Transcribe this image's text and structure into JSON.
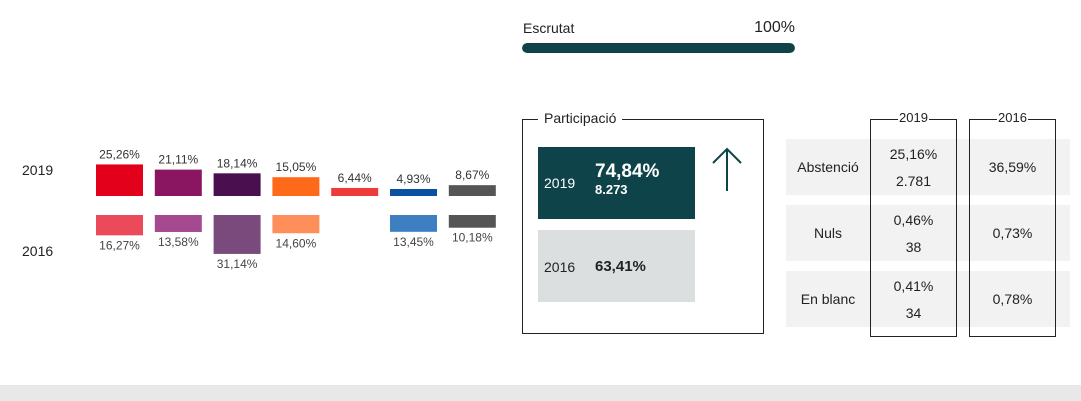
{
  "escrutat": {
    "label": "Escrutat",
    "value_text": "100%",
    "progress": 1.0
  },
  "chart_data": {
    "type": "bar",
    "rows": [
      "2019",
      "2016"
    ],
    "series": [
      {
        "color_2019": "#e2001a",
        "color_2016": "#ea4a5a",
        "v2019": 25.26,
        "v2016": 16.27,
        "l2019": "25,26%",
        "l2016": "16,27%"
      },
      {
        "color_2019": "#8a1561",
        "color_2016": "#a54a8f",
        "v2019": 21.11,
        "v2016": 13.58,
        "l2019": "21,11%",
        "l2016": "13,58%"
      },
      {
        "color_2019": "#4a0f4e",
        "color_2016": "#7b4a7d",
        "v2019": 18.14,
        "v2016": 31.14,
        "l2019": "18,14%",
        "l2016": "31,14%"
      },
      {
        "color_2019": "#ff6a1a",
        "color_2016": "#ff8f5a",
        "v2019": 15.05,
        "v2016": 14.6,
        "l2019": "15,05%",
        "l2016": "14,60%"
      },
      {
        "color_2019": "#ee3b3b",
        "color_2016": "#ee3b3b",
        "v2019": 6.44,
        "v2016": null,
        "l2019": "6,44%",
        "l2016": ""
      },
      {
        "color_2019": "#0a52a0",
        "color_2016": "#3d7fc0",
        "v2019": 4.93,
        "v2016": 13.45,
        "l2019": "4,93%",
        "l2016": "13,45%"
      },
      {
        "color_2019": "#555555",
        "color_2016": "#555555",
        "v2019": 8.67,
        "v2016": 10.18,
        "l2019": "8,67%",
        "l2016": "10,18%"
      }
    ]
  },
  "participacio": {
    "title": "Participació",
    "y2019": {
      "year": "2019",
      "pct": "74,84%",
      "count": "8.273"
    },
    "y2016": {
      "year": "2016",
      "pct": "63,41%"
    },
    "trend_icon": "arrow-up-icon"
  },
  "table": {
    "col_2019": "2019",
    "col_2016": "2016",
    "rows": [
      {
        "label": "Abstenció",
        "v2019_pct": "25,16%",
        "v2019_count": "2.781",
        "v2016": "36,59%"
      },
      {
        "label": "Nuls",
        "v2019_pct": "0,46%",
        "v2019_count": "38",
        "v2016": "0,73%"
      },
      {
        "label": "En blanc",
        "v2019_pct": "0,41%",
        "v2019_count": "34",
        "v2016": "0,78%"
      }
    ]
  }
}
